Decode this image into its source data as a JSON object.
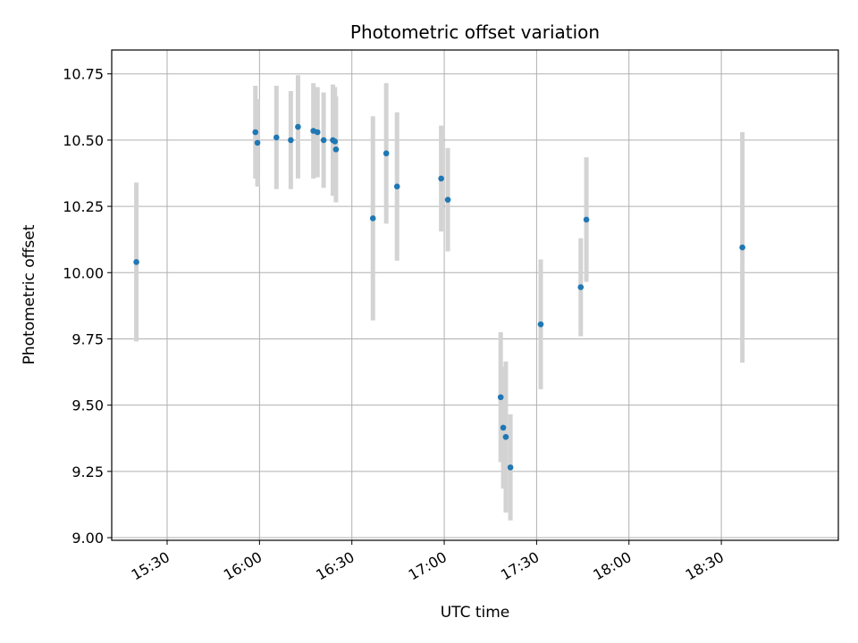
{
  "chart_data": {
    "type": "scatter",
    "title": "Photometric offset variation",
    "xlabel": "UTC time",
    "ylabel": "Photometric offset",
    "grid": true,
    "legend": "none",
    "x_unit": "UTC HH:MM",
    "xlim": [
      "15:12",
      "19:08"
    ],
    "ylim": [
      8.99,
      10.84
    ],
    "x_ticks": [
      "15:30",
      "16:00",
      "16:30",
      "17:00",
      "17:30",
      "18:00",
      "18:30"
    ],
    "y_ticks": [
      "9.00",
      "9.25",
      "9.50",
      "9.75",
      "10.00",
      "10.25",
      "10.50",
      "10.75"
    ],
    "colors": {
      "marker": "#1f77b4",
      "errorbar": "#d3d3d3",
      "grid": "#b0b0b0"
    },
    "points": [
      {
        "x": "15:20:00",
        "y": 10.04,
        "yerr": 0.3
      },
      {
        "x": "15:58:40",
        "y": 10.53,
        "yerr": 0.175
      },
      {
        "x": "15:59:20",
        "y": 10.49,
        "yerr": 0.165
      },
      {
        "x": "16:05:30",
        "y": 10.51,
        "yerr": 0.195
      },
      {
        "x": "16:10:10",
        "y": 10.5,
        "yerr": 0.185
      },
      {
        "x": "16:12:30",
        "y": 10.55,
        "yerr": 0.195
      },
      {
        "x": "16:17:30",
        "y": 10.535,
        "yerr": 0.18
      },
      {
        "x": "16:18:50",
        "y": 10.53,
        "yerr": 0.17
      },
      {
        "x": "16:20:50",
        "y": 10.5,
        "yerr": 0.18
      },
      {
        "x": "16:23:50",
        "y": 10.5,
        "yerr": 0.21
      },
      {
        "x": "16:24:30",
        "y": 10.495,
        "yerr": 0.205
      },
      {
        "x": "16:24:50",
        "y": 10.465,
        "yerr": 0.2
      },
      {
        "x": "16:36:50",
        "y": 10.205,
        "yerr": 0.385
      },
      {
        "x": "16:41:10",
        "y": 10.45,
        "yerr": 0.265
      },
      {
        "x": "16:44:40",
        "y": 10.325,
        "yerr": 0.28
      },
      {
        "x": "16:59:00",
        "y": 10.355,
        "yerr": 0.2
      },
      {
        "x": "17:01:10",
        "y": 10.275,
        "yerr": 0.195
      },
      {
        "x": "17:18:20",
        "y": 9.53,
        "yerr": 0.245
      },
      {
        "x": "17:19:10",
        "y": 9.415,
        "yerr": 0.23
      },
      {
        "x": "17:20:00",
        "y": 9.38,
        "yerr": 0.285
      },
      {
        "x": "17:21:30",
        "y": 9.265,
        "yerr": 0.2
      },
      {
        "x": "17:31:20",
        "y": 9.805,
        "yerr": 0.245
      },
      {
        "x": "17:44:20",
        "y": 9.945,
        "yerr": 0.185
      },
      {
        "x": "17:46:10",
        "y": 10.2,
        "yerr": 0.235
      },
      {
        "x": "18:36:50",
        "y": 10.095,
        "yerr": 0.435
      }
    ]
  }
}
